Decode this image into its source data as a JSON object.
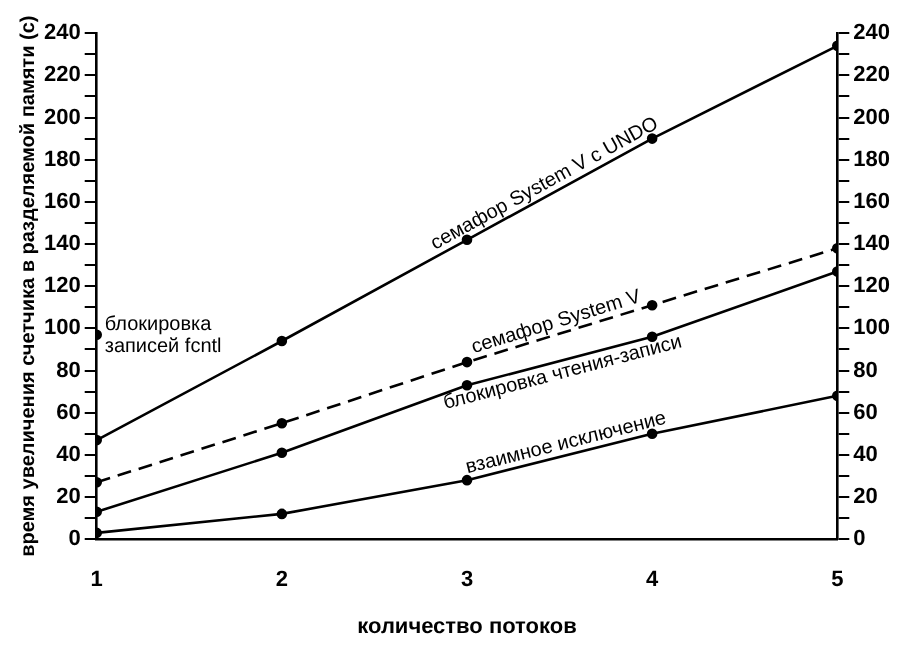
{
  "chart_data": {
    "type": "line",
    "xlabel": "количество потоков",
    "ylabel": "время увеличения счетчика в разделяемой памяти (с)",
    "x": [
      1,
      2,
      3,
      4,
      5
    ],
    "series": [
      {
        "name": "семафор System V с UNDO",
        "color": "#000000",
        "values": [
          47,
          94,
          142,
          190,
          234
        ]
      },
      {
        "name": "семафор System V",
        "color": "#000000",
        "values": [
          27,
          55,
          84,
          111,
          138
        ],
        "line_style": "dashed"
      },
      {
        "name": "блокировка чтения-записи",
        "color": "#000000",
        "values": [
          13,
          41,
          73,
          96,
          127
        ]
      },
      {
        "name": "взаимное исключение",
        "color": "#000000",
        "values": [
          3,
          12,
          28,
          50,
          68
        ]
      },
      {
        "color": "#000000",
        "values": [
          97,
          null,
          null,
          null,
          null
        ]
      }
    ],
    "annotations": [
      {
        "text": "блокировка записей fcntl",
        "x": 1,
        "y": 97
      }
    ],
    "xlim": [
      1,
      5
    ],
    "xticks": [
      1,
      2,
      3,
      4,
      5
    ],
    "ylim": [
      0,
      240
    ],
    "yticks": [
      0,
      {
        "value": 10,
        "label": null
      },
      20,
      {
        "value": 30,
        "label": null
      },
      40,
      {
        "value": 50,
        "label": null
      },
      60,
      {
        "value": 70,
        "label": null
      },
      80,
      {
        "value": 90,
        "label": null
      },
      100,
      {
        "value": 110,
        "label": null
      },
      120,
      {
        "value": 130,
        "label": null
      },
      140,
      {
        "value": 150,
        "label": null
      },
      160,
      {
        "value": 170,
        "label": null
      },
      180,
      {
        "value": 190,
        "label": null
      },
      200,
      {
        "value": 210,
        "label": null
      },
      220,
      {
        "value": 230,
        "label": null
      },
      240
    ],
    "y2lim": [
      0,
      240
    ],
    "y2ticks": [
      0,
      {
        "value": 10,
        "label": null
      },
      20,
      {
        "value": 30,
        "label": null
      },
      40,
      {
        "value": 50,
        "label": null
      },
      60,
      {
        "value": 70,
        "label": null
      },
      80,
      {
        "value": 90,
        "label": null
      },
      100,
      {
        "value": 110,
        "label": null
      },
      120,
      {
        "value": 130,
        "label": null
      },
      140,
      {
        "value": 150,
        "label": null
      },
      160,
      {
        "value": 170,
        "label": null
      },
      180,
      {
        "value": 190,
        "label": null
      },
      200,
      {
        "value": 210,
        "label": null
      },
      220,
      {
        "value": 230,
        "label": null
      },
      240
    ],
    "grid": false,
    "legend": false,
    "marker": "circle",
    "line_style": "solid"
  }
}
